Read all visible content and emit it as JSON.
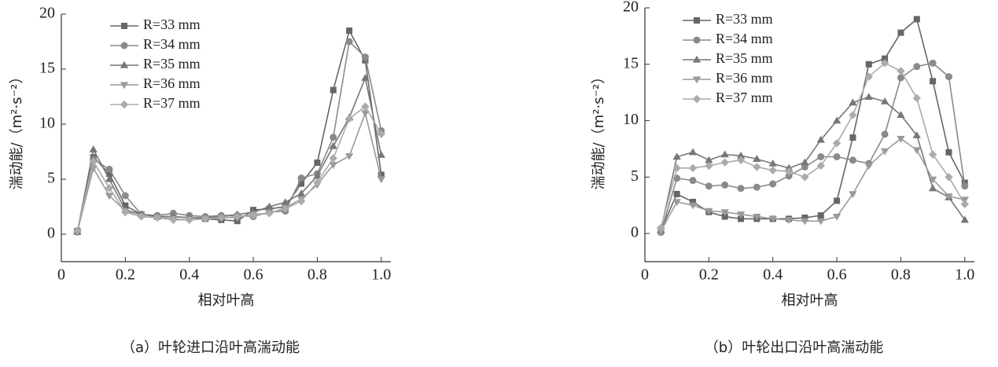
{
  "chart_data": [
    {
      "type": "line",
      "xlabel": "相对叶高",
      "ylabel": "湍动能/（m²·s⁻²）",
      "caption": "（a）叶轮进口沿叶高湍动能",
      "x": [
        0.05,
        0.1,
        0.15,
        0.2,
        0.25,
        0.3,
        0.35,
        0.4,
        0.45,
        0.5,
        0.55,
        0.6,
        0.65,
        0.7,
        0.75,
        0.8,
        0.85,
        0.9,
        0.95,
        1.0
      ],
      "xlim": [
        0,
        1.03
      ],
      "xticks": [
        0,
        0.2,
        0.4,
        0.6,
        0.8,
        {
          "value": 1,
          "label": "1.0"
        }
      ],
      "ylim": [
        -2.5,
        20
      ],
      "yticks": [
        0,
        5,
        10,
        15,
        20
      ],
      "series": [
        {
          "name": "R=33 mm",
          "color": "#666666",
          "marker": "square",
          "values": [
            0.3,
            7.0,
            5.5,
            2.6,
            1.8,
            1.6,
            1.6,
            1.5,
            1.4,
            1.3,
            1.2,
            2.2,
            2.3,
            2.5,
            4.6,
            6.5,
            13.1,
            18.5,
            15.8,
            5.4
          ]
        },
        {
          "name": "R=34 mm",
          "color": "#8a8a8a",
          "marker": "circle",
          "values": [
            0.2,
            6.8,
            5.9,
            3.5,
            1.8,
            1.7,
            1.9,
            1.7,
            1.6,
            1.7,
            1.7,
            1.6,
            2.0,
            2.1,
            5.1,
            5.5,
            8.8,
            17.5,
            16.1,
            9.4
          ]
        },
        {
          "name": "R=35 mm",
          "color": "#777777",
          "marker": "triangle-up",
          "values": [
            0.2,
            7.7,
            5.0,
            2.2,
            1.8,
            1.6,
            1.6,
            1.5,
            1.5,
            1.6,
            1.8,
            2.0,
            2.5,
            2.9,
            3.7,
            5.3,
            8.0,
            10.6,
            14.2,
            7.2
          ]
        },
        {
          "name": "R=36 mm",
          "color": "#9a9a9a",
          "marker": "triangle-down",
          "values": [
            0.2,
            6.0,
            3.5,
            2.1,
            1.6,
            1.5,
            1.4,
            1.3,
            1.4,
            1.5,
            1.5,
            1.8,
            1.9,
            2.4,
            3.2,
            4.5,
            6.3,
            7.1,
            11.0,
            5.0
          ]
        },
        {
          "name": "R=37 mm",
          "color": "#ababab",
          "marker": "diamond",
          "values": [
            0.3,
            6.6,
            4.2,
            2.0,
            1.6,
            1.5,
            1.3,
            1.3,
            1.4,
            1.5,
            1.6,
            1.7,
            1.9,
            2.3,
            3.0,
            4.7,
            6.9,
            10.5,
            11.6,
            9.1
          ]
        }
      ]
    },
    {
      "type": "line",
      "xlabel": "相对叶高",
      "ylabel": "湍动能/（m²·s⁻²）",
      "caption": "（b）叶轮出口沿叶高湍动能",
      "x": [
        0.05,
        0.1,
        0.15,
        0.2,
        0.25,
        0.3,
        0.35,
        0.4,
        0.45,
        0.5,
        0.55,
        0.6,
        0.65,
        0.7,
        0.75,
        0.8,
        0.85,
        0.9,
        0.95,
        1.0
      ],
      "xlim": [
        0,
        1.03
      ],
      "xticks": [
        0,
        0.2,
        0.4,
        0.6,
        0.8,
        {
          "value": 1,
          "label": "1.0"
        }
      ],
      "ylim": [
        -2.5,
        20
      ],
      "yticks": [
        0,
        5,
        10,
        15,
        20
      ],
      "series": [
        {
          "name": "R=33 mm",
          "color": "#666666",
          "marker": "square",
          "values": [
            0.3,
            3.5,
            2.8,
            1.9,
            1.5,
            1.3,
            1.3,
            1.3,
            1.3,
            1.4,
            1.6,
            2.9,
            8.5,
            15.0,
            15.5,
            17.8,
            19.0,
            13.5,
            7.2,
            4.5
          ]
        },
        {
          "name": "R=34 mm",
          "color": "#8a8a8a",
          "marker": "circle",
          "values": [
            0.1,
            4.9,
            4.7,
            4.2,
            4.3,
            4.0,
            4.1,
            4.4,
            5.1,
            5.9,
            6.8,
            6.8,
            6.5,
            6.2,
            8.8,
            13.8,
            14.8,
            15.1,
            13.9,
            4.2
          ]
        },
        {
          "name": "R=35 mm",
          "color": "#777777",
          "marker": "triangle-up",
          "values": [
            0.3,
            6.8,
            7.2,
            6.5,
            7.0,
            6.9,
            6.6,
            6.2,
            5.8,
            6.3,
            8.3,
            10.0,
            11.6,
            12.1,
            11.7,
            10.5,
            8.7,
            4.0,
            3.2,
            1.2
          ]
        },
        {
          "name": "R=36 mm",
          "color": "#9a9a9a",
          "marker": "triangle-down",
          "values": [
            0.2,
            2.8,
            2.5,
            2.0,
            1.9,
            1.7,
            1.5,
            1.3,
            1.2,
            1.1,
            1.1,
            1.5,
            3.5,
            6.0,
            7.3,
            8.4,
            7.4,
            4.8,
            3.3,
            3.0
          ]
        },
        {
          "name": "R=37 mm",
          "color": "#ababab",
          "marker": "diamond",
          "values": [
            0.5,
            5.8,
            5.8,
            6.0,
            6.3,
            6.5,
            5.9,
            5.6,
            5.5,
            5.0,
            6.0,
            8.0,
            10.5,
            13.9,
            15.1,
            14.4,
            12.0,
            7.0,
            5.0,
            2.6
          ]
        }
      ]
    }
  ]
}
